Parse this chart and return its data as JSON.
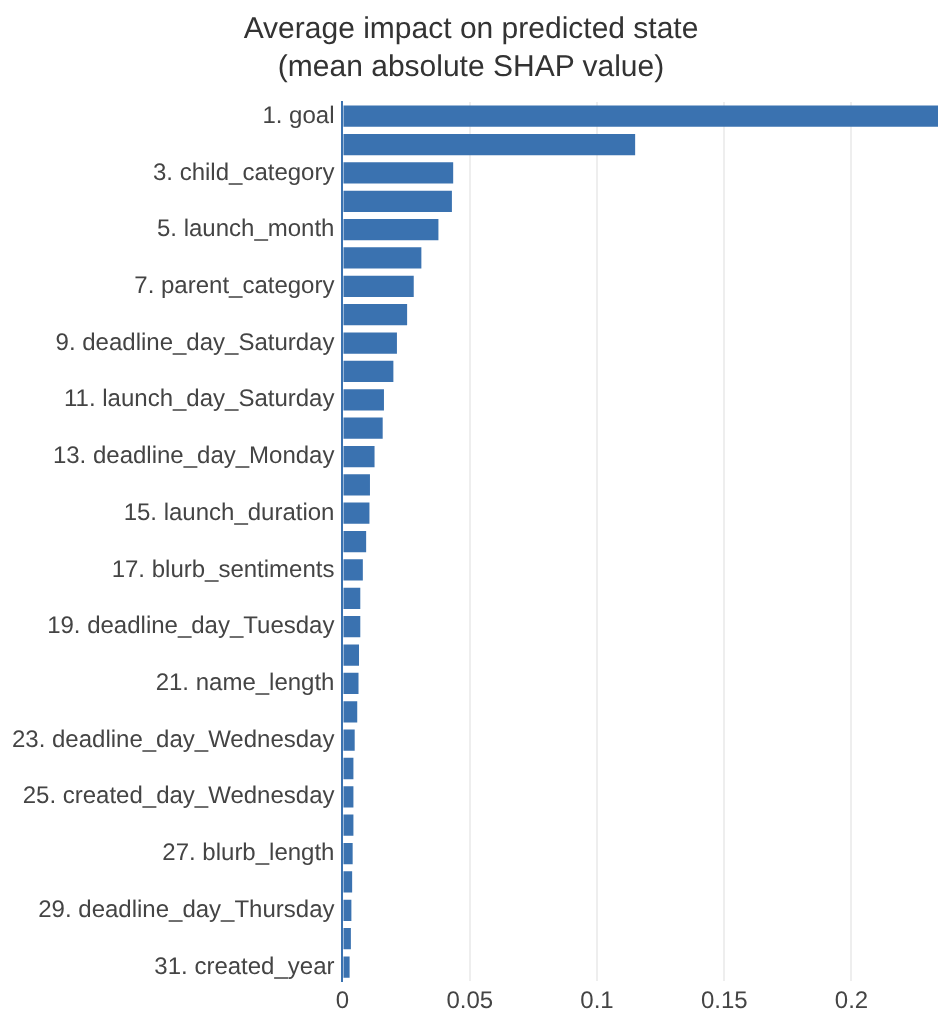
{
  "chart_data": {
    "type": "bar",
    "orientation": "horizontal",
    "title": "Average impact on predicted state",
    "subtitle": "(mean absolute SHAP value)",
    "categories": [
      "1. goal",
      null,
      "3. child_category",
      null,
      "5. launch_month",
      null,
      "7. parent_category",
      null,
      "9. deadline_day_Saturday",
      null,
      "11. launch_day_Saturday",
      null,
      "13. deadline_day_Monday",
      null,
      "15. launch_duration",
      null,
      "17. blurb_sentiments",
      null,
      "19. deadline_day_Tuesday",
      null,
      "21. name_length",
      null,
      "23. deadline_day_Wednesday",
      null,
      "25. created_day_Wednesday",
      null,
      "27. blurb_length",
      null,
      "29. deadline_day_Thursday",
      null,
      "31. created_year"
    ],
    "values": [
      0.234,
      0.115,
      0.0435,
      0.043,
      0.0377,
      0.031,
      0.028,
      0.0254,
      0.0214,
      0.02,
      0.0163,
      0.0158,
      0.0126,
      0.0108,
      0.0106,
      0.0093,
      0.008,
      0.007,
      0.007,
      0.0065,
      0.0063,
      0.0058,
      0.0048,
      0.0043,
      0.0043,
      0.0043,
      0.004,
      0.0038,
      0.0035,
      0.0033,
      0.0028
    ],
    "color": "#3a72b0",
    "xlim": [
      0,
      0.234
    ],
    "xticks": [
      0,
      0.05,
      0.1,
      0.15,
      0.2
    ],
    "grid": "x",
    "legend": false
  }
}
